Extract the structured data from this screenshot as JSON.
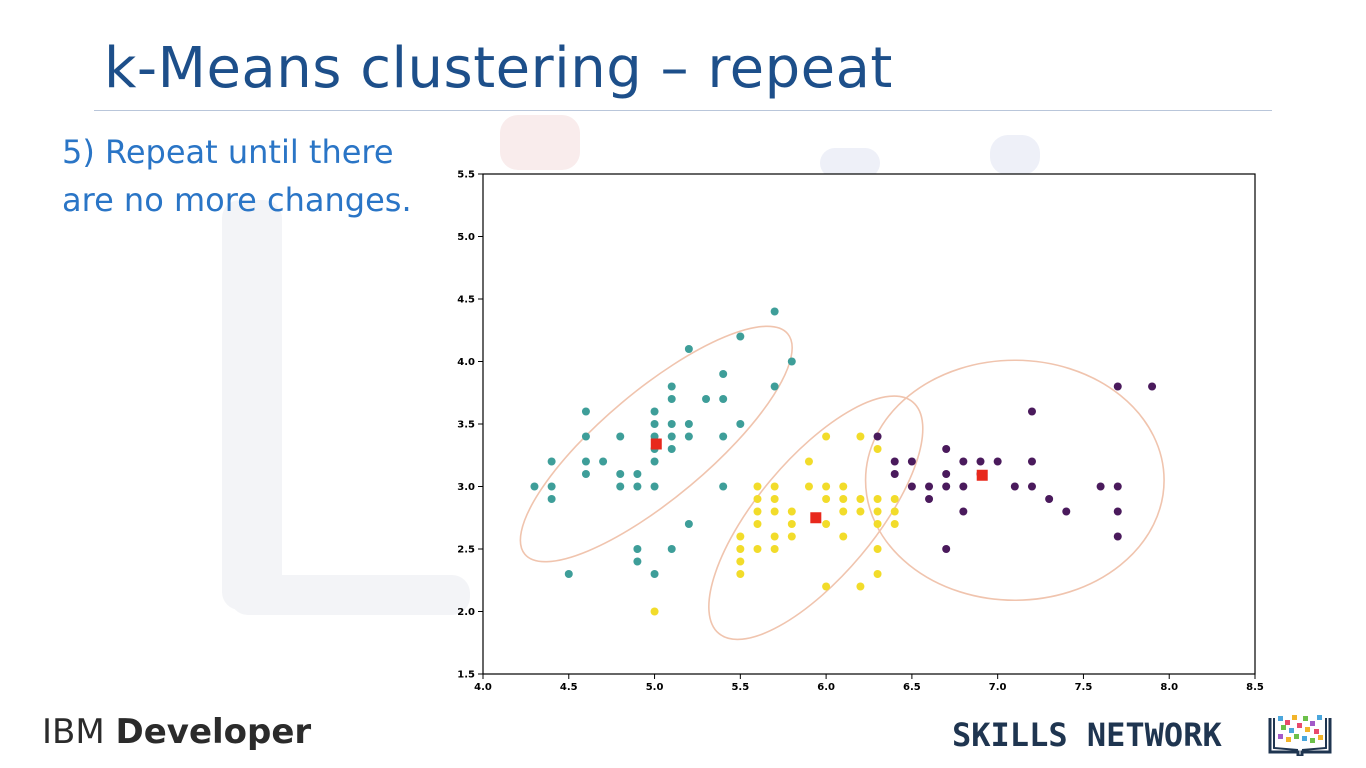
{
  "slide": {
    "title": "k-Means clustering – repeat",
    "bullet_line1": "5) Repeat until there",
    "bullet_line2": "are no more changes."
  },
  "footer": {
    "ibm_light": "IBM",
    "ibm_bold": "Developer",
    "skills": "SKILLS NETWORK",
    "skills_icon": "book-icon"
  },
  "chart_data": {
    "type": "scatter",
    "xlim": [
      4.0,
      8.5
    ],
    "ylim": [
      1.5,
      5.5
    ],
    "xticks": [
      "4.0",
      "4.5",
      "5.0",
      "5.5",
      "6.0",
      "6.5",
      "7.0",
      "7.5",
      "8.0",
      "8.5"
    ],
    "yticks": [
      "1.5",
      "2.0",
      "2.5",
      "3.0",
      "3.5",
      "4.0",
      "4.5",
      "5.0",
      "5.5"
    ],
    "grid": false,
    "series": [
      {
        "color": "#3e9e99",
        "points": [
          [
            4.3,
            3.0
          ],
          [
            4.4,
            2.9
          ],
          [
            4.4,
            3.0
          ],
          [
            4.4,
            3.2
          ],
          [
            4.5,
            2.3
          ],
          [
            4.6,
            3.1
          ],
          [
            4.6,
            3.2
          ],
          [
            4.6,
            3.4
          ],
          [
            4.6,
            3.6
          ],
          [
            4.7,
            3.2
          ],
          [
            4.8,
            3.0
          ],
          [
            4.8,
            3.1
          ],
          [
            4.8,
            3.4
          ],
          [
            4.9,
            2.4
          ],
          [
            4.9,
            2.5
          ],
          [
            4.9,
            3.0
          ],
          [
            4.9,
            3.1
          ],
          [
            5.0,
            2.3
          ],
          [
            5.0,
            3.0
          ],
          [
            5.0,
            3.2
          ],
          [
            5.0,
            3.3
          ],
          [
            5.0,
            3.4
          ],
          [
            5.0,
            3.5
          ],
          [
            5.0,
            3.6
          ],
          [
            5.1,
            2.5
          ],
          [
            5.1,
            3.3
          ],
          [
            5.1,
            3.4
          ],
          [
            5.1,
            3.5
          ],
          [
            5.1,
            3.7
          ],
          [
            5.1,
            3.8
          ],
          [
            5.2,
            2.7
          ],
          [
            5.2,
            3.4
          ],
          [
            5.2,
            3.5
          ],
          [
            5.2,
            4.1
          ],
          [
            5.3,
            3.7
          ],
          [
            5.4,
            3.0
          ],
          [
            5.4,
            3.4
          ],
          [
            5.4,
            3.7
          ],
          [
            5.4,
            3.9
          ],
          [
            5.5,
            3.5
          ],
          [
            5.5,
            4.2
          ],
          [
            5.7,
            3.8
          ],
          [
            5.7,
            4.4
          ],
          [
            5.8,
            4.0
          ]
        ]
      },
      {
        "color": "#f2dc2a",
        "points": [
          [
            5.0,
            2.0
          ],
          [
            5.5,
            2.3
          ],
          [
            5.5,
            2.4
          ],
          [
            5.5,
            2.5
          ],
          [
            5.5,
            2.6
          ],
          [
            5.6,
            2.5
          ],
          [
            5.6,
            2.7
          ],
          [
            5.6,
            2.8
          ],
          [
            5.6,
            2.9
          ],
          [
            5.6,
            3.0
          ],
          [
            5.7,
            2.5
          ],
          [
            5.7,
            2.6
          ],
          [
            5.7,
            2.8
          ],
          [
            5.7,
            2.9
          ],
          [
            5.7,
            3.0
          ],
          [
            5.8,
            2.6
          ],
          [
            5.8,
            2.7
          ],
          [
            5.8,
            2.8
          ],
          [
            5.9,
            3.0
          ],
          [
            5.9,
            3.2
          ],
          [
            6.0,
            2.2
          ],
          [
            6.0,
            2.7
          ],
          [
            6.0,
            2.9
          ],
          [
            6.0,
            3.0
          ],
          [
            6.0,
            3.4
          ],
          [
            6.1,
            2.6
          ],
          [
            6.1,
            2.8
          ],
          [
            6.1,
            2.9
          ],
          [
            6.1,
            3.0
          ],
          [
            6.2,
            2.2
          ],
          [
            6.2,
            2.8
          ],
          [
            6.2,
            2.9
          ],
          [
            6.2,
            3.4
          ],
          [
            6.3,
            2.3
          ],
          [
            6.3,
            2.5
          ],
          [
            6.3,
            2.7
          ],
          [
            6.3,
            2.8
          ],
          [
            6.3,
            2.9
          ],
          [
            6.3,
            3.3
          ],
          [
            6.4,
            2.7
          ],
          [
            6.4,
            2.8
          ],
          [
            6.4,
            2.9
          ]
        ]
      },
      {
        "color": "#4a1a5c",
        "points": [
          [
            6.3,
            3.4
          ],
          [
            6.4,
            3.1
          ],
          [
            6.4,
            3.2
          ],
          [
            6.5,
            3.0
          ],
          [
            6.5,
            3.2
          ],
          [
            6.6,
            2.9
          ],
          [
            6.6,
            3.0
          ],
          [
            6.7,
            2.5
          ],
          [
            6.7,
            3.0
          ],
          [
            6.7,
            3.1
          ],
          [
            6.7,
            3.3
          ],
          [
            6.8,
            2.8
          ],
          [
            6.8,
            3.0
          ],
          [
            6.8,
            3.2
          ],
          [
            6.9,
            3.1
          ],
          [
            6.9,
            3.2
          ],
          [
            7.0,
            3.2
          ],
          [
            7.1,
            3.0
          ],
          [
            7.2,
            3.0
          ],
          [
            7.2,
            3.2
          ],
          [
            7.2,
            3.6
          ],
          [
            7.3,
            2.9
          ],
          [
            7.4,
            2.8
          ],
          [
            7.6,
            3.0
          ],
          [
            7.7,
            2.6
          ],
          [
            7.7,
            2.8
          ],
          [
            7.7,
            3.0
          ],
          [
            7.7,
            3.8
          ],
          [
            7.9,
            3.8
          ]
        ]
      }
    ],
    "centroids": [
      [
        5.01,
        3.34
      ],
      [
        5.94,
        2.75
      ],
      [
        6.91,
        3.09
      ]
    ],
    "centroid_color": "#e8281c",
    "ellipses": [
      {
        "cx": 5.01,
        "cy": 3.34,
        "rx": 1.0,
        "ry": 0.43,
        "angle": 40
      },
      {
        "cx": 5.94,
        "cy": 2.75,
        "rx": 0.88,
        "ry": 0.47,
        "angle": 50
      },
      {
        "cx": 7.1,
        "cy": 3.05,
        "rx": 0.87,
        "ry": 0.96,
        "angle": 0
      }
    ],
    "ellipse_color": "#f0c4ae"
  }
}
